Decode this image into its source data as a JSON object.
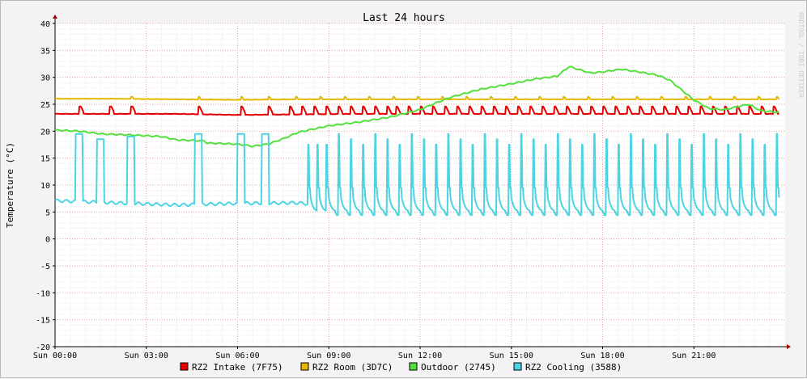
{
  "chart_data": {
    "type": "line",
    "title": "Last 24 hours",
    "ylabel": "Temperature (°C)",
    "watermark": "RRDTOOL / TOBI OETIKER",
    "ylim": [
      -20,
      40
    ],
    "yticks": [
      40,
      35,
      30,
      25,
      20,
      15,
      10,
      5,
      0,
      -5,
      -10,
      -15,
      -20
    ],
    "xlim_hours": [
      0,
      24
    ],
    "xticks": [
      "Sun 00:00",
      "Sun 03:00",
      "Sun 06:00",
      "Sun 09:00",
      "Sun 12:00",
      "Sun 15:00",
      "Sun 18:00",
      "Sun 21:00"
    ],
    "grid": true,
    "legend_position": "bottom",
    "series": [
      {
        "name": "RZ2 Intake (7F75)",
        "color": "#e60000",
        "points": [
          [
            0,
            23.2
          ],
          [
            2,
            23.2
          ],
          [
            4,
            23.2
          ],
          [
            6,
            23.0
          ],
          [
            8,
            23.1
          ],
          [
            10,
            23.2
          ],
          [
            12,
            23.2
          ],
          [
            14,
            23.2
          ],
          [
            16,
            23.2
          ],
          [
            18,
            23.2
          ],
          [
            20,
            23.2
          ],
          [
            22,
            23.2
          ],
          [
            24,
            23.2
          ]
        ],
        "spikes": [
          0.8,
          1.8,
          2.5,
          4.7,
          6.1,
          7.0,
          7.7,
          8.1,
          8.5,
          8.9,
          9.3,
          9.7,
          10.1,
          10.5,
          10.9,
          11.2,
          11.6,
          12.0,
          12.4,
          12.8,
          13.2,
          13.6,
          14.0,
          14.4,
          14.8,
          15.2,
          15.6,
          16.0,
          16.4,
          16.8,
          17.2,
          17.6,
          18.0,
          18.4,
          18.8,
          19.2,
          19.6,
          20.0,
          20.4,
          20.8,
          21.2,
          21.6,
          22.0,
          22.4,
          22.8,
          23.2,
          23.6
        ],
        "spike_peak": 24.6
      },
      {
        "name": "RZ2 Room (3D7C)",
        "color": "#e6b800",
        "points": [
          [
            0,
            26.0
          ],
          [
            2,
            26.0
          ],
          [
            4,
            25.9
          ],
          [
            6,
            25.8
          ],
          [
            8,
            25.9
          ],
          [
            10,
            25.9
          ],
          [
            12,
            25.9
          ],
          [
            14,
            25.9
          ],
          [
            16,
            25.9
          ],
          [
            18,
            25.9
          ],
          [
            20,
            25.9
          ],
          [
            22,
            25.9
          ],
          [
            24,
            25.9
          ]
        ],
        "spikes": [
          2.5,
          4.7,
          6.1,
          7.0,
          7.9,
          8.7,
          9.5,
          10.3,
          11.1,
          11.9,
          12.7,
          13.5,
          14.3,
          15.1,
          15.9,
          16.7,
          17.5,
          18.3,
          19.1,
          19.9,
          20.7,
          21.5,
          22.3,
          23.1,
          23.7
        ],
        "spike_peak": 26.4
      },
      {
        "name": "Outdoor (2745)",
        "color": "#54e03c",
        "points": [
          [
            0,
            20.2
          ],
          [
            0.8,
            20.0
          ],
          [
            1.5,
            19.5
          ],
          [
            2.5,
            19.3
          ],
          [
            3.5,
            19.0
          ],
          [
            4.0,
            18.4
          ],
          [
            4.9,
            18.2
          ],
          [
            5.0,
            17.8
          ],
          [
            6.0,
            17.6
          ],
          [
            6.5,
            17.2
          ],
          [
            7.0,
            17.6
          ],
          [
            7.5,
            18.6
          ],
          [
            8.0,
            19.8
          ],
          [
            9.0,
            21.0
          ],
          [
            10.0,
            21.7
          ],
          [
            11.0,
            22.6
          ],
          [
            12.0,
            24.0
          ],
          [
            12.5,
            25.2
          ],
          [
            13.0,
            26.3
          ],
          [
            14.0,
            27.8
          ],
          [
            15.0,
            28.8
          ],
          [
            15.8,
            29.7
          ],
          [
            16.5,
            30.2
          ],
          [
            16.9,
            32.0
          ],
          [
            17.3,
            31.3
          ],
          [
            17.6,
            30.8
          ],
          [
            18.0,
            31.0
          ],
          [
            18.6,
            31.5
          ],
          [
            19.2,
            31.0
          ],
          [
            19.8,
            30.4
          ],
          [
            20.2,
            29.5
          ],
          [
            20.5,
            28.1
          ],
          [
            21.0,
            25.8
          ],
          [
            21.5,
            24.2
          ],
          [
            22.0,
            24.0
          ],
          [
            22.8,
            25.0
          ],
          [
            23.2,
            23.8
          ],
          [
            23.8,
            23.5
          ]
        ]
      },
      {
        "name": "RZ2 Cooling (3588)",
        "color": "#4cd4e2",
        "points": [
          [
            0,
            7.1
          ],
          [
            2,
            6.7
          ],
          [
            4,
            6.3
          ],
          [
            6,
            6.6
          ],
          [
            8,
            6.7
          ],
          [
            8.3,
            6.5
          ]
        ],
        "spikes": [
          0.8,
          1.5,
          2.5,
          4.7,
          6.1,
          6.9,
          8.3,
          8.6,
          8.9,
          9.3,
          9.7,
          10.1,
          10.5,
          10.9,
          11.3,
          11.7,
          12.1,
          12.5,
          12.9,
          13.3,
          13.7,
          14.1,
          14.5,
          14.9,
          15.3,
          15.7,
          16.1,
          16.5,
          16.9,
          17.3,
          17.7,
          18.1,
          18.5,
          18.9,
          19.3,
          19.7,
          20.1,
          20.5,
          20.9,
          21.3,
          21.7,
          22.1,
          22.5,
          22.9,
          23.3,
          23.7
        ],
        "spike_peak": 19.5,
        "cycle_base": 5.0,
        "cycle_trough": 4.4
      }
    ]
  }
}
